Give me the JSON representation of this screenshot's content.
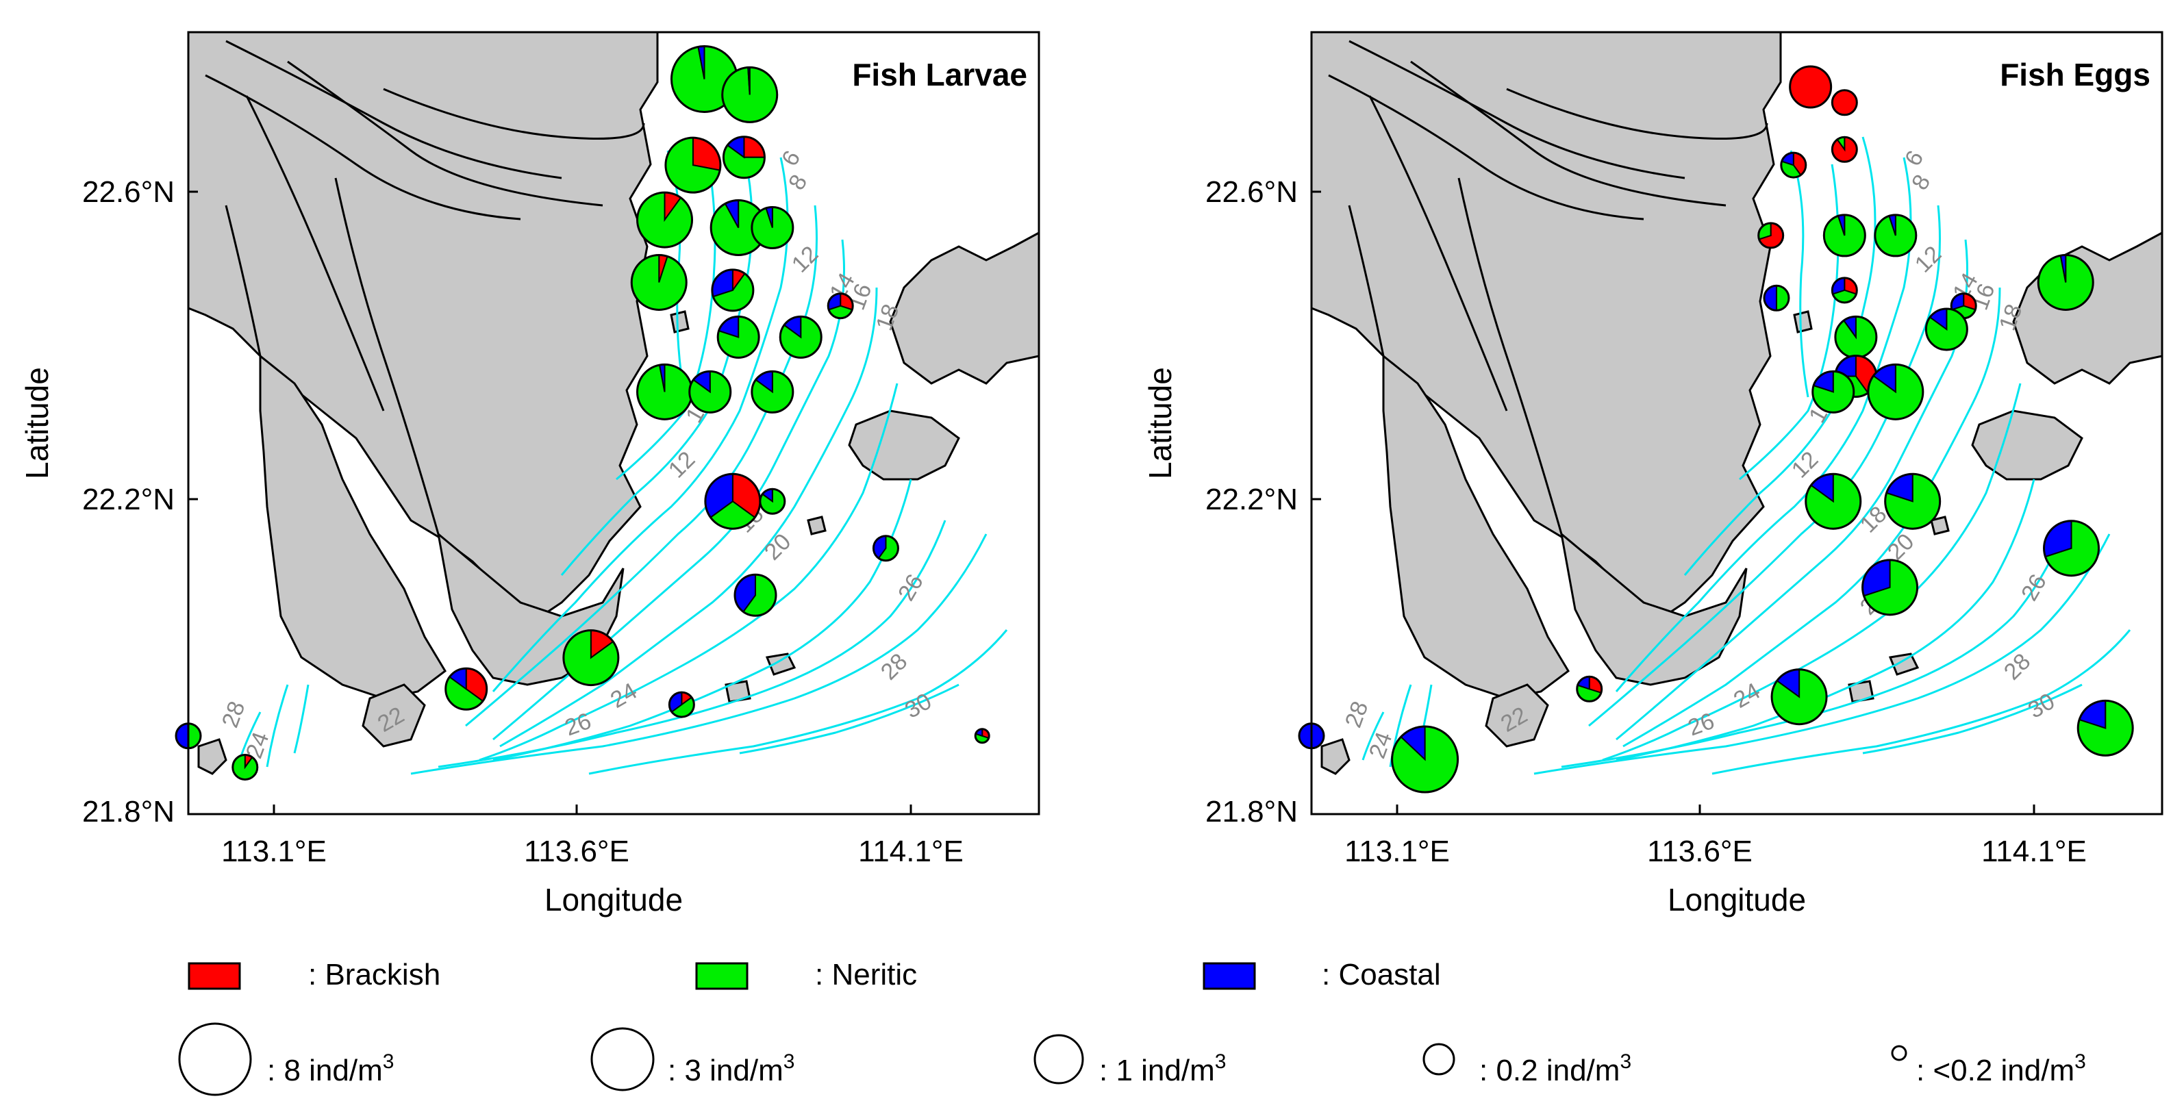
{
  "colors": {
    "brackish": "#ff0000",
    "neritic": "#00ee00",
    "coastal": "#0000ff",
    "land": "#c8c8c8",
    "contour": "#00e5ee",
    "contour_label": "#888888"
  },
  "chart_data": {
    "type": "map-pie",
    "x_range": [
      112.9,
      114.4
    ],
    "y_range": [
      21.8,
      22.8
    ],
    "x_ticks": [
      "113.1°E",
      "113.6°E",
      "114.1°E"
    ],
    "x_tick_values": [
      113.1,
      113.6,
      114.1
    ],
    "y_ticks": [
      "22.6°N",
      "22.2°N",
      "21.8°N"
    ],
    "y_tick_values": [
      22.6,
      22.2,
      21.8
    ],
    "xlabel": "Longitude",
    "ylabel": "Latitude",
    "panels": [
      {
        "title": "Fish Larvae",
        "stations": [
          {
            "lon": 113.81,
            "lat": 22.74,
            "r": 8,
            "brackish": 0,
            "neritic": 0.97,
            "coastal": 0.03
          },
          {
            "lon": 113.89,
            "lat": 22.72,
            "r": 7,
            "brackish": 0,
            "neritic": 0.99,
            "coastal": 0.01
          },
          {
            "lon": 113.79,
            "lat": 22.63,
            "r": 7,
            "brackish": 0.28,
            "neritic": 0.72,
            "coastal": 0
          },
          {
            "lon": 113.88,
            "lat": 22.64,
            "r": 2,
            "brackish": 0.25,
            "neritic": 0.6,
            "coastal": 0.15
          },
          {
            "lon": 113.74,
            "lat": 22.56,
            "r": 5,
            "brackish": 0.1,
            "neritic": 0.9,
            "coastal": 0
          },
          {
            "lon": 113.87,
            "lat": 22.55,
            "r": 5,
            "brackish": 0,
            "neritic": 0.92,
            "coastal": 0.08
          },
          {
            "lon": 113.93,
            "lat": 22.55,
            "r": 2,
            "brackish": 0,
            "neritic": 0.95,
            "coastal": 0.05
          },
          {
            "lon": 113.73,
            "lat": 22.48,
            "r": 6,
            "brackish": 0.05,
            "neritic": 0.95,
            "coastal": 0
          },
          {
            "lon": 113.86,
            "lat": 22.47,
            "r": 1,
            "brackish": 0.1,
            "neritic": 0.6,
            "coastal": 0.3
          },
          {
            "lon": 113.87,
            "lat": 22.41,
            "r": 1,
            "brackish": 0,
            "neritic": 0.8,
            "coastal": 0.2
          },
          {
            "lon": 113.98,
            "lat": 22.41,
            "r": 1,
            "brackish": 0,
            "neritic": 0.85,
            "coastal": 0.15
          },
          {
            "lon": 114.05,
            "lat": 22.45,
            "r": 0.2,
            "brackish": 0.3,
            "neritic": 0.4,
            "coastal": 0.3
          },
          {
            "lon": 113.74,
            "lat": 22.34,
            "r": 4,
            "brackish": 0,
            "neritic": 0.97,
            "coastal": 0.03
          },
          {
            "lon": 113.82,
            "lat": 22.34,
            "r": 1,
            "brackish": 0,
            "neritic": 0.85,
            "coastal": 0.15
          },
          {
            "lon": 113.93,
            "lat": 22.34,
            "r": 1,
            "brackish": 0,
            "neritic": 0.85,
            "coastal": 0.15
          },
          {
            "lon": 113.86,
            "lat": 22.2,
            "r": 6,
            "brackish": 0.35,
            "neritic": 0.3,
            "coastal": 0.35
          },
          {
            "lon": 113.93,
            "lat": 22.2,
            "r": 0.2,
            "brackish": 0,
            "neritic": 0.85,
            "coastal": 0.15
          },
          {
            "lon": 114.13,
            "lat": 22.14,
            "r": 0.2,
            "brackish": 0,
            "neritic": 0.6,
            "coastal": 0.4
          },
          {
            "lon": 113.9,
            "lat": 22.08,
            "r": 1,
            "brackish": 0,
            "neritic": 0.6,
            "coastal": 0.4
          },
          {
            "lon": 113.61,
            "lat": 22.0,
            "r": 3,
            "brackish": 0.15,
            "neritic": 0.85,
            "coastal": 0
          },
          {
            "lon": 113.39,
            "lat": 21.96,
            "r": 1,
            "brackish": 0.35,
            "neritic": 0.5,
            "coastal": 0.15
          },
          {
            "lon": 113.77,
            "lat": 21.94,
            "r": 0.2,
            "brackish": 0.15,
            "neritic": 0.5,
            "coastal": 0.35
          },
          {
            "lon": 112.9,
            "lat": 21.9,
            "r": 0.2,
            "brackish": 0,
            "neritic": 0.5,
            "coastal": 0.5
          },
          {
            "lon": 113.0,
            "lat": 21.86,
            "r": 0.2,
            "brackish": 0.1,
            "neritic": 0.9,
            "coastal": 0
          },
          {
            "lon": 114.3,
            "lat": 21.9,
            "r": 0.1,
            "brackish": 0.3,
            "neritic": 0.5,
            "coastal": 0.2
          }
        ]
      },
      {
        "title": "Fish Eggs",
        "stations": [
          {
            "lon": 113.78,
            "lat": 22.73,
            "r": 2,
            "brackish": 1,
            "neritic": 0,
            "coastal": 0
          },
          {
            "lon": 113.84,
            "lat": 22.71,
            "r": 0.2,
            "brackish": 1,
            "neritic": 0,
            "coastal": 0
          },
          {
            "lon": 113.84,
            "lat": 22.65,
            "r": 0.2,
            "brackish": 0.9,
            "neritic": 0.1,
            "coastal": 0
          },
          {
            "lon": 113.75,
            "lat": 22.63,
            "r": 0.2,
            "brackish": 0.4,
            "neritic": 0.4,
            "coastal": 0.2
          },
          {
            "lon": 113.71,
            "lat": 22.54,
            "r": 0.2,
            "brackish": 0.7,
            "neritic": 0.3,
            "coastal": 0
          },
          {
            "lon": 113.84,
            "lat": 22.54,
            "r": 2,
            "brackish": 0,
            "neritic": 0.95,
            "coastal": 0.05
          },
          {
            "lon": 113.93,
            "lat": 22.54,
            "r": 1,
            "brackish": 0,
            "neritic": 0.95,
            "coastal": 0.05
          },
          {
            "lon": 113.72,
            "lat": 22.46,
            "r": 0.2,
            "brackish": 0,
            "neritic": 0.5,
            "coastal": 0.5
          },
          {
            "lon": 113.84,
            "lat": 22.47,
            "r": 0.2,
            "brackish": 0.3,
            "neritic": 0.4,
            "coastal": 0.3
          },
          {
            "lon": 114.23,
            "lat": 22.48,
            "r": 7,
            "brackish": 0,
            "neritic": 0.97,
            "coastal": 0.03
          },
          {
            "lon": 114.05,
            "lat": 22.45,
            "r": 0.2,
            "brackish": 0.3,
            "neritic": 0.4,
            "coastal": 0.3
          },
          {
            "lon": 113.86,
            "lat": 22.41,
            "r": 1,
            "brackish": 0,
            "neritic": 0.9,
            "coastal": 0.1
          },
          {
            "lon": 114.02,
            "lat": 22.42,
            "r": 2,
            "brackish": 0,
            "neritic": 0.85,
            "coastal": 0.15
          },
          {
            "lon": 113.86,
            "lat": 22.36,
            "r": 2,
            "brackish": 0.4,
            "neritic": 0.35,
            "coastal": 0.25
          },
          {
            "lon": 113.82,
            "lat": 22.34,
            "r": 2,
            "brackish": 0,
            "neritic": 0.8,
            "coastal": 0.2
          },
          {
            "lon": 113.93,
            "lat": 22.34,
            "r": 3,
            "brackish": 0,
            "neritic": 0.85,
            "coastal": 0.15
          },
          {
            "lon": 113.82,
            "lat": 22.2,
            "r": 6,
            "brackish": 0,
            "neritic": 0.85,
            "coastal": 0.15
          },
          {
            "lon": 113.96,
            "lat": 22.2,
            "r": 7,
            "brackish": 0,
            "neritic": 0.8,
            "coastal": 0.2
          },
          {
            "lon": 114.24,
            "lat": 22.14,
            "r": 7,
            "brackish": 0,
            "neritic": 0.7,
            "coastal": 0.3
          },
          {
            "lon": 113.92,
            "lat": 22.09,
            "r": 6,
            "brackish": 0,
            "neritic": 0.7,
            "coastal": 0.3
          },
          {
            "lon": 113.39,
            "lat": 21.96,
            "r": 0.2,
            "brackish": 0.3,
            "neritic": 0.5,
            "coastal": 0.2
          },
          {
            "lon": 113.76,
            "lat": 21.95,
            "r": 6,
            "brackish": 0,
            "neritic": 0.85,
            "coastal": 0.15
          },
          {
            "lon": 112.9,
            "lat": 21.9,
            "r": 0.2,
            "brackish": 0,
            "neritic": 0,
            "coastal": 1
          },
          {
            "lon": 113.1,
            "lat": 21.87,
            "r": 8,
            "brackish": 0,
            "neritic": 0.87,
            "coastal": 0.13
          },
          {
            "lon": 114.3,
            "lat": 21.91,
            "r": 5,
            "brackish": 0,
            "neritic": 0.8,
            "coastal": 0.2
          }
        ]
      }
    ],
    "contours": [
      {
        "label": "6",
        "value": 6
      },
      {
        "label": "8",
        "value": 8
      },
      {
        "label": "10",
        "value": 10
      },
      {
        "label": "12",
        "value": 12
      },
      {
        "label": "14",
        "value": 14
      },
      {
        "label": "16",
        "value": 16
      },
      {
        "label": "18",
        "value": 18
      },
      {
        "label": "20",
        "value": 20
      },
      {
        "label": "22",
        "value": 22
      },
      {
        "label": "24",
        "value": 24
      },
      {
        "label": "26",
        "value": 26
      },
      {
        "label": "28",
        "value": 28
      },
      {
        "label": "30",
        "value": 30
      }
    ]
  },
  "legend": {
    "categories": [
      {
        "key": "brackish",
        "label": ": Brackish"
      },
      {
        "key": "neritic",
        "label": ": Neritic"
      },
      {
        "key": "coastal",
        "label": ": Coastal"
      }
    ],
    "sizes": [
      {
        "label_main": ": 8 ind/m",
        "label_sup": "3",
        "value": 8
      },
      {
        "label_main": ": 3 ind/m",
        "label_sup": "3",
        "value": 3
      },
      {
        "label_main": ": 1 ind/m",
        "label_sup": "3",
        "value": 1
      },
      {
        "label_main": ": 0.2 ind/m",
        "label_sup": "3",
        "value": 0.2
      },
      {
        "label_main": ": <0.2 ind/m",
        "label_sup": "3",
        "value": 0.1
      }
    ]
  }
}
